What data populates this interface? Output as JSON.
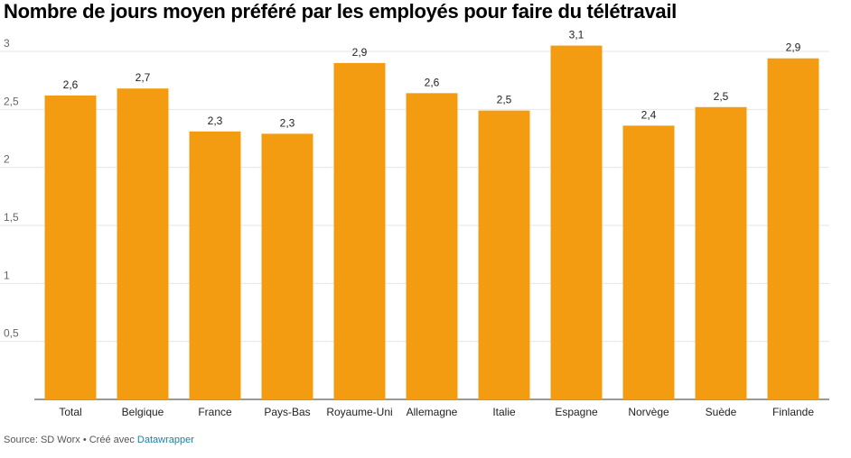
{
  "chart_data": {
    "type": "bar",
    "title": "Nombre de jours moyen préféré par les employés pour faire du télétravail",
    "categories": [
      "Total",
      "Belgique",
      "France",
      "Pays-Bas",
      "Royaume-Uni",
      "Allemagne",
      "Italie",
      "Espagne",
      "Norvège",
      "Suède",
      "Finlande"
    ],
    "values": [
      2.62,
      2.68,
      2.31,
      2.29,
      2.9,
      2.64,
      2.49,
      3.05,
      2.36,
      2.52,
      2.94
    ],
    "value_labels": [
      "2,6",
      "2,7",
      "2,3",
      "2,3",
      "2,9",
      "2,6",
      "2,5",
      "3,1",
      "2,4",
      "2,5",
      "2,9"
    ],
    "ylim": [
      0,
      3
    ],
    "yticks": [
      0.5,
      1,
      1.5,
      2,
      2.5,
      3
    ],
    "ytick_labels": [
      "0,5",
      "1",
      "1,5",
      "2",
      "2,5",
      "3"
    ],
    "grid": true,
    "bar_color": "#f39c12"
  },
  "footer": {
    "source": "Source: SD Worx • Créé avec ",
    "tool": "Datawrapper"
  },
  "colors": {
    "link": "#1d81a2"
  }
}
